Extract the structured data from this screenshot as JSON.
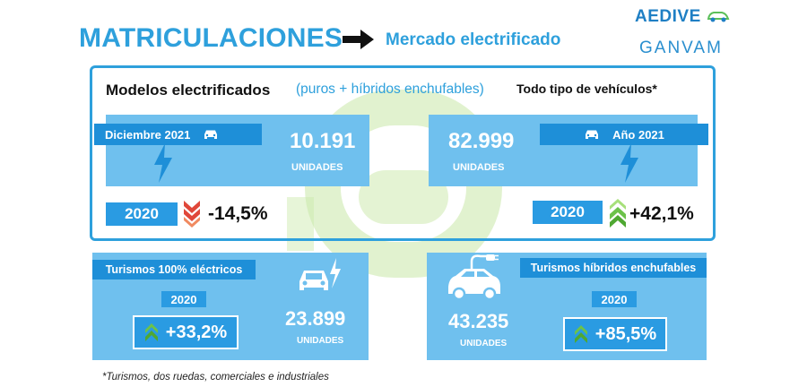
{
  "header": {
    "title": "MATRICULACIONES",
    "subtitle": "Mercado electrificado",
    "logos": {
      "aedive": "AEDIVE",
      "ganvam": "GANVAM"
    }
  },
  "top_section": {
    "heading": "Modelos electrificados",
    "heading_paren": "(puros + híbridos enchufables)",
    "heading_right": "Todo tipo de vehículos*",
    "left": {
      "label": "Diciembre 2021",
      "value": "10.191",
      "units": "UNIDADES",
      "compare_year": "2020",
      "change": "-14,5%",
      "trend": "down"
    },
    "right": {
      "label": "Año 2021",
      "value": "82.999",
      "units": "UNIDADES",
      "compare_year": "2020",
      "change": "+42,1%",
      "trend": "up"
    }
  },
  "bottom_section": {
    "left": {
      "label": "Turismos 100% eléctricos",
      "year": "2020",
      "change": "+33,2%",
      "value": "23.899",
      "units": "UNIDADES"
    },
    "right": {
      "label": "Turismos híbridos enchufables",
      "year": "2020",
      "change": "+85,5%",
      "value": "43.235",
      "units": "UNIDADES"
    }
  },
  "footnote": "*Turismos, dos ruedas, comerciales e industriales",
  "colors": {
    "primary_blue": "#2ea0dc",
    "panel_blue": "#6fc0ee",
    "label_blue": "#1e8fd8",
    "up_green": "#6cc24a",
    "down_red": "#e0473a"
  },
  "icons": [
    "arrow-right-icon",
    "car-icon",
    "lightning-icon",
    "chevron-down-icon",
    "chevron-up-icon",
    "electric-car-icon",
    "plug-car-icon"
  ]
}
